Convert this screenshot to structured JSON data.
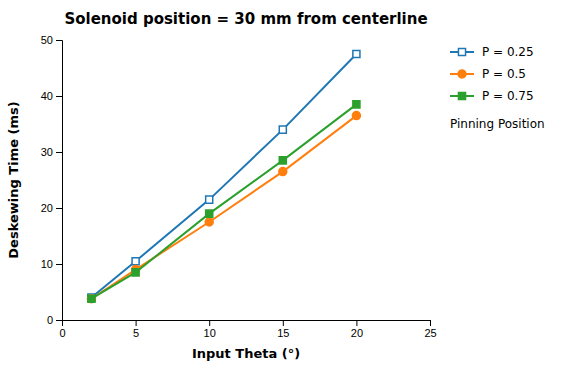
{
  "chart_data": {
    "type": "line",
    "title": "Solenoid position = 30 mm from centerline",
    "x_label": "Input Theta (°)",
    "y_label": "Deskewing Time (ms)",
    "x": [
      2,
      5,
      10,
      15,
      20
    ],
    "series": [
      {
        "name": "P = 0.25",
        "marker": "square-open",
        "values": [
          4.0,
          10.5,
          21.5,
          34.0,
          47.5
        ]
      },
      {
        "name": "P = 0.5",
        "marker": "circle",
        "values": [
          3.8,
          9.0,
          17.5,
          26.5,
          36.5
        ]
      },
      {
        "name": "P = 0.75",
        "marker": "square",
        "values": [
          3.8,
          8.5,
          19.0,
          28.5,
          38.5
        ]
      }
    ],
    "xlim": [
      0,
      25
    ],
    "ylim": [
      0,
      50
    ],
    "xticks": [
      0,
      5,
      10,
      15,
      20,
      25
    ],
    "yticks": [
      0,
      10,
      20,
      30,
      40,
      50
    ],
    "grid": false,
    "legend": "right",
    "legend_title": "Pinning Position"
  }
}
